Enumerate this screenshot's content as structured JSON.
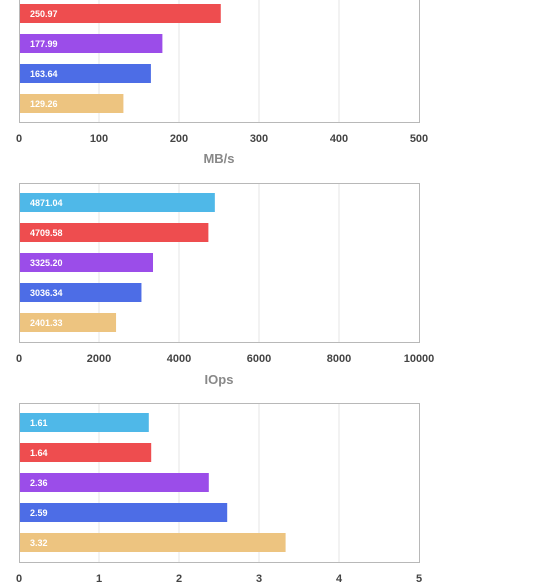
{
  "chart_data": [
    {
      "type": "bar",
      "orientation": "horizontal",
      "xlabel": "MB/s",
      "xlim": [
        0,
        500
      ],
      "xticks": [
        "0",
        "100",
        "200",
        "300",
        "400",
        "500"
      ],
      "grid": true,
      "values": [
        "250.97",
        "177.99",
        "163.64",
        "129.26"
      ],
      "colors": [
        "#ee4d4f",
        "#9b4de9",
        "#4d6de6",
        "#edc480"
      ],
      "clipped_top": true
    },
    {
      "type": "bar",
      "orientation": "horizontal",
      "xlabel": "IOps",
      "xlim": [
        0,
        10000
      ],
      "xticks": [
        "0",
        "2000",
        "4000",
        "6000",
        "8000",
        "10000"
      ],
      "grid": true,
      "values": [
        "4871.04",
        "4709.58",
        "3325.20",
        "3036.34",
        "2401.33"
      ],
      "colors": [
        "#4fb8e8",
        "#ee4d4f",
        "#9b4de9",
        "#4d6de6",
        "#edc480"
      ]
    },
    {
      "type": "bar",
      "orientation": "horizontal",
      "xlabel": "",
      "xlim": [
        0,
        5
      ],
      "xticks": [
        "0",
        "1",
        "2",
        "3",
        "4",
        "5"
      ],
      "grid": true,
      "values": [
        "1.61",
        "1.64",
        "2.36",
        "2.59",
        "3.32"
      ],
      "colors": [
        "#4fb8e8",
        "#ee4d4f",
        "#9b4de9",
        "#4d6de6",
        "#edc480"
      ]
    }
  ]
}
